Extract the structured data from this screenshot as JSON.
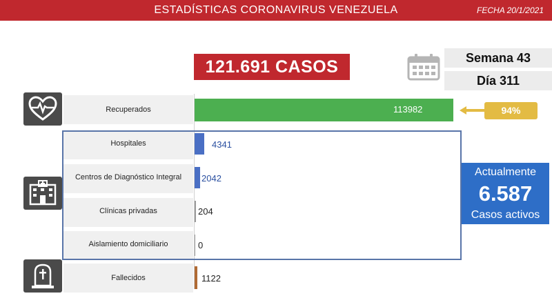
{
  "header": {
    "title": "ESTADÍSTICAS CORONAVIRUS VENEZUELA",
    "date": "FECHA 20/1/2021"
  },
  "totals": {
    "cases_label": "121.691 CASOS",
    "week_label": "Semana 43",
    "day_label": "Día 311"
  },
  "icons": {
    "calendar": "calendar-icon",
    "recovered": "heart-pulse-icon",
    "hospital": "hospital-icon",
    "deceased": "gravestone-icon"
  },
  "recovered_pct": "94%",
  "active": {
    "top": "Actualmente",
    "value": "6.587",
    "bottom": "Casos activos"
  },
  "chart_data": {
    "type": "bar",
    "orientation": "horizontal",
    "categories": [
      "Recuperados",
      "Hospitales",
      "Centros de Diagnóstico Integral",
      "Clínicas privadas",
      "Aislamiento domiciliario",
      "Fallecidos"
    ],
    "values": [
      113982,
      4341,
      2042,
      204,
      0,
      1122
    ],
    "value_labels": [
      "113982",
      "4341",
      "2042",
      "204",
      "0",
      "1122"
    ],
    "colors": [
      "#4caf50",
      "#4a6fc4",
      "#4a6fc4",
      "#9a9a9a",
      "#9a9a9a",
      "#b06a34"
    ],
    "xlim": [
      0,
      115000
    ],
    "grid": false
  }
}
